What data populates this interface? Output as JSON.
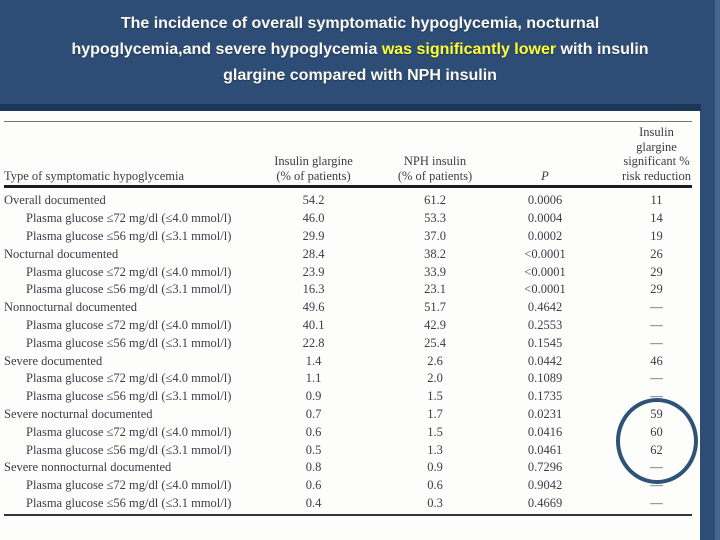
{
  "slide": {
    "background_color": "#2e4d76",
    "title": {
      "line1": "The incidence of overall symptomatic hypoglycemia, nocturnal",
      "line2_pre": "hypoglycemia,and severe hypoglycemia ",
      "line2_highlight": "was significantly lower",
      "line2_post": " with insulin",
      "line3": "glargine compared with NPH insulin",
      "highlight_color": "#ffff35",
      "text_color": "#fbfbf4"
    }
  },
  "table": {
    "headers": {
      "type": "Type of symptomatic hypoglycemia",
      "glargine": [
        "Insulin glargine",
        "(% of patients)"
      ],
      "nph": [
        "NPH insulin",
        "(% of patients)"
      ],
      "p": "P",
      "risk": [
        "Insulin glargine",
        "significant %",
        "risk reduction"
      ]
    },
    "rows": [
      {
        "label": "Overall documented",
        "indent": "",
        "glargine": "54.2",
        "nph": "61.2",
        "p": "0.0006",
        "risk": "11"
      },
      {
        "label": "Plasma glucose ≤72 mg/dl (≤4.0 mmol/l)",
        "indent": "indent",
        "glargine": "46.0",
        "nph": "53.3",
        "p": "0.0004",
        "risk": "14"
      },
      {
        "label": "Plasma glucose ≤56 mg/dl (≤3.1 mmol/l)",
        "indent": "indent",
        "glargine": "29.9",
        "nph": "37.0",
        "p": "0.0002",
        "risk": "19"
      },
      {
        "label": "Nocturnal documented",
        "indent": "",
        "glargine": "28.4",
        "nph": "38.2",
        "p": "<0.0001",
        "risk": "26"
      },
      {
        "label": "Plasma glucose ≤72 mg/dl (≤4.0 mmol/l)",
        "indent": "indent",
        "glargine": "23.9",
        "nph": "33.9",
        "p": "<0.0001",
        "risk": "29"
      },
      {
        "label": "Plasma glucose ≤56 mg/dl (≤3.1 mmol/l)",
        "indent": "indent",
        "glargine": "16.3",
        "nph": "23.1",
        "p": "<0.0001",
        "risk": "29"
      },
      {
        "label": "Nonnocturnal documented",
        "indent": "",
        "glargine": "49.6",
        "nph": "51.7",
        "p": "0.4642",
        "risk": "—"
      },
      {
        "label": "Plasma glucose ≤72 mg/dl (≤4.0 mmol/l)",
        "indent": "indent",
        "glargine": "40.1",
        "nph": "42.9",
        "p": "0.2553",
        "risk": "—"
      },
      {
        "label": "Plasma glucose ≤56 mg/dl (≤3.1 mmol/l)",
        "indent": "indent",
        "glargine": "22.8",
        "nph": "25.4",
        "p": "0.1545",
        "risk": "—"
      },
      {
        "label": "Severe documented",
        "indent": "",
        "glargine": "1.4",
        "nph": "2.6",
        "p": "0.0442",
        "risk": "46"
      },
      {
        "label": "Plasma glucose ≤72 mg/dl (≤4.0 mmol/l)",
        "indent": "indent",
        "glargine": "1.1",
        "nph": "2.0",
        "p": "0.1089",
        "risk": "—"
      },
      {
        "label": "Plasma glucose ≤56 mg/dl (≤3.1 mmol/l)",
        "indent": "indent",
        "glargine": "0.9",
        "nph": "1.5",
        "p": "0.1735",
        "risk": "—"
      },
      {
        "label": "Severe nocturnal documented",
        "indent": "",
        "glargine": "0.7",
        "nph": "1.7",
        "p": "0.0231",
        "risk": "59"
      },
      {
        "label": "Plasma glucose ≤72 mg/dl (≤4.0 mmol/l)",
        "indent": "indent",
        "glargine": "0.6",
        "nph": "1.5",
        "p": "0.0416",
        "risk": "60"
      },
      {
        "label": "Plasma glucose ≤56 mg/dl (≤3.1 mmol/l)",
        "indent": "indent",
        "glargine": "0.5",
        "nph": "1.3",
        "p": "0.0461",
        "risk": "62"
      },
      {
        "label": "Severe nonnocturnal documented",
        "indent": "",
        "glargine": "0.8",
        "nph": "0.9",
        "p": "0.7296",
        "risk": "—"
      },
      {
        "label": "Plasma glucose ≤72 mg/dl (≤4.0 mmol/l)",
        "indent": "indent",
        "glargine": "0.6",
        "nph": "0.6",
        "p": "0.9042",
        "risk": "—"
      },
      {
        "label": "Plasma glucose ≤56 mg/dl (≤3.1 mmol/l)",
        "indent": "indent",
        "glargine": "0.4",
        "nph": "0.3",
        "p": "0.4669",
        "risk": "—"
      }
    ]
  },
  "annotation": {
    "circle_color": "#2f5377",
    "circled_values": [
      "59",
      "60",
      "62"
    ]
  }
}
